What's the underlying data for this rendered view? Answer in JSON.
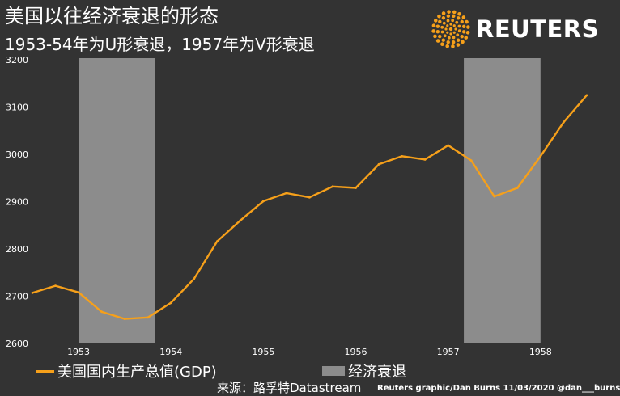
{
  "header": {
    "title": "美国以往经济衰退的形态",
    "subtitle": "1953-54年为U形衰退，1957年为V形衰退",
    "brand": "REUTERS"
  },
  "legend": {
    "line_label": "美国国内生产总值(GDP)",
    "bar_label": "经济衰退"
  },
  "footer": {
    "source": "来源：路孚特Datastream",
    "credit": "Reuters graphic/Dan Burns 11/03/2020 @dan___burns"
  },
  "colors": {
    "background": "#333333",
    "line": "#f6a01a",
    "recession": "#8c8c8c",
    "text": "#ffffff"
  },
  "chart_data": {
    "type": "line",
    "series": [
      {
        "name": "美国国内生产总值(GDP)",
        "x": [
          1952.5,
          1952.75,
          1953.0,
          1953.25,
          1953.5,
          1953.75,
          1954.0,
          1954.25,
          1954.5,
          1954.75,
          1955.0,
          1955.25,
          1955.5,
          1955.75,
          1956.0,
          1956.25,
          1956.5,
          1956.75,
          1957.0,
          1957.25,
          1957.5,
          1957.75,
          1958.0,
          1958.25,
          1958.5
        ],
        "values": [
          2707,
          2722,
          2708,
          2667,
          2652,
          2655,
          2686,
          2737,
          2816,
          2860,
          2901,
          2918,
          2909,
          2932,
          2929,
          2979,
          2996,
          2989,
          3019,
          2987,
          2911,
          2929,
          2996,
          3068,
          3125
        ]
      }
    ],
    "recessions": [
      {
        "label": "经济衰退",
        "start": 1953.0,
        "end": 1953.83
      },
      {
        "label": "经济衰退",
        "start": 1957.17,
        "end": 1958.0
      }
    ],
    "xlim": [
      1952.5,
      1958.72
    ],
    "ylim": [
      2600,
      3200
    ],
    "x_ticks": [
      1953,
      1954,
      1955,
      1956,
      1957,
      1958
    ],
    "x_tick_labels": [
      "1953",
      "1954",
      "1955",
      "1956",
      "1957",
      "1958"
    ],
    "y_ticks": [
      2600,
      2700,
      2800,
      2900,
      3000,
      3100,
      3200
    ],
    "y_tick_labels": [
      "2600",
      "2700",
      "2800",
      "2900",
      "3000",
      "3100",
      "3200"
    ],
    "xlabel": "",
    "ylabel": "",
    "grid": false,
    "legend_position": "bottom"
  }
}
